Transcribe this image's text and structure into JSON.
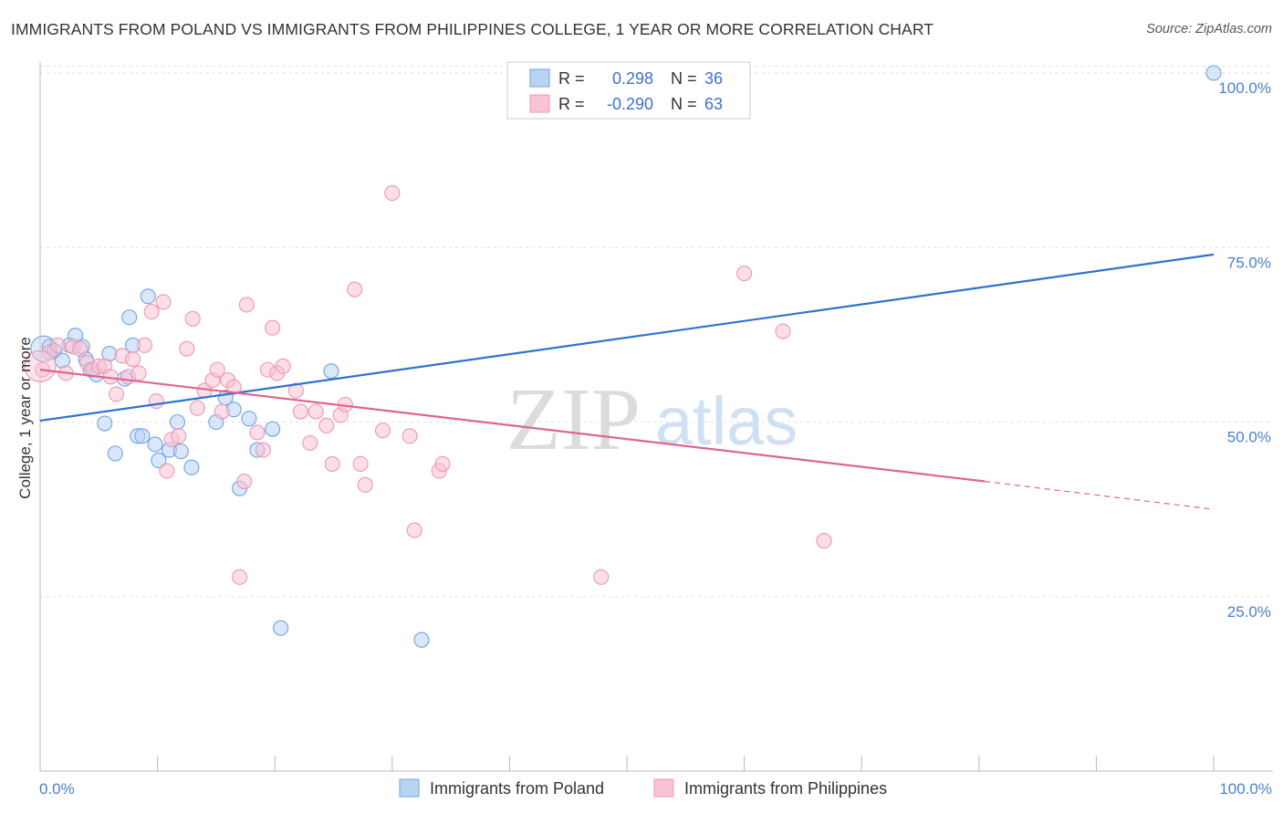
{
  "header": {
    "title": "IMMIGRANTS FROM POLAND VS IMMIGRANTS FROM PHILIPPINES COLLEGE, 1 YEAR OR MORE CORRELATION CHART",
    "source": "Source: ZipAtlas.com"
  },
  "watermark": {
    "zip": "ZIP",
    "atlas": "atlas"
  },
  "legend_top": {
    "rows": [
      {
        "r_label": "R =",
        "r_value": "0.298",
        "n_label": "N =",
        "n_value": "36"
      },
      {
        "r_label": "R =",
        "r_value": "-0.290",
        "n_label": "N =",
        "n_value": "63"
      }
    ]
  },
  "chart_data": {
    "type": "scatter",
    "title": "IMMIGRANTS FROM POLAND VS IMMIGRANTS FROM PHILIPPINES COLLEGE, 1 YEAR OR MORE CORRELATION CHART",
    "xlabel": "",
    "ylabel": "College, 1 year or more",
    "xlim": [
      0,
      100
    ],
    "ylim": [
      0,
      104
    ],
    "x_tick_labels": [
      "0.0%",
      "100.0%"
    ],
    "y_tick_labels": [
      {
        "value": 100,
        "label": "100.0%"
      },
      {
        "value": 75,
        "label": "75.0%"
      },
      {
        "value": 50,
        "label": "50.0%"
      },
      {
        "value": 25,
        "label": "25.0%"
      }
    ],
    "grid": true,
    "legend_position": "bottom",
    "series": [
      {
        "name": "Immigrants from Poland",
        "color": "#6fa3e6",
        "fill": "#b9d3f3",
        "line_color": "#2e73d1",
        "trend": {
          "x0": 0,
          "y0": 50.2,
          "x1": 100,
          "y1": 74.0
        },
        "points": [
          [
            0.3,
            60.5
          ],
          [
            0.8,
            60.8
          ],
          [
            1.2,
            60.2
          ],
          [
            1.9,
            58.8
          ],
          [
            2.5,
            61.0
          ],
          [
            3.0,
            62.4
          ],
          [
            3.6,
            60.8
          ],
          [
            3.9,
            59.0
          ],
          [
            4.3,
            57.5
          ],
          [
            4.8,
            56.8
          ],
          [
            5.5,
            49.8
          ],
          [
            5.9,
            59.8
          ],
          [
            6.4,
            45.5
          ],
          [
            7.2,
            56.2
          ],
          [
            7.6,
            65.0
          ],
          [
            7.9,
            61.0
          ],
          [
            8.3,
            48.0
          ],
          [
            8.7,
            48.0
          ],
          [
            9.2,
            68.0
          ],
          [
            9.8,
            46.8
          ],
          [
            10.1,
            44.5
          ],
          [
            11.0,
            46.0
          ],
          [
            11.7,
            50.0
          ],
          [
            12.0,
            45.8
          ],
          [
            12.9,
            43.5
          ],
          [
            15.0,
            50.0
          ],
          [
            15.8,
            53.5
          ],
          [
            16.5,
            51.8
          ],
          [
            17.0,
            40.5
          ],
          [
            17.8,
            50.5
          ],
          [
            18.5,
            46.0
          ],
          [
            19.8,
            49.0
          ],
          [
            20.5,
            20.5
          ],
          [
            24.8,
            57.3
          ],
          [
            32.5,
            18.8
          ],
          [
            100.0,
            100.0
          ]
        ]
      },
      {
        "name": "Immigrants from Philippines",
        "color": "#ef97b4",
        "fill": "#f8c3d4",
        "line_color": "#e0648f",
        "trend": {
          "x0": 0,
          "y0": 57.5,
          "x1": 80.5,
          "y1": 41.5
        },
        "trend_dashed": {
          "x0": 80.5,
          "y0": 41.5,
          "x1": 100,
          "y1": 37.5
        },
        "points": [
          [
            0.2,
            57.5
          ],
          [
            0.8,
            60.0
          ],
          [
            1.5,
            61.0
          ],
          [
            2.2,
            57.0
          ],
          [
            2.8,
            60.8
          ],
          [
            3.4,
            60.5
          ],
          [
            4.0,
            58.5
          ],
          [
            4.5,
            57.5
          ],
          [
            5.0,
            58.0
          ],
          [
            5.5,
            58.0
          ],
          [
            6.0,
            56.5
          ],
          [
            6.5,
            54.0
          ],
          [
            7.0,
            59.5
          ],
          [
            7.5,
            56.5
          ],
          [
            7.9,
            59.0
          ],
          [
            8.4,
            57.0
          ],
          [
            8.9,
            61.0
          ],
          [
            9.5,
            65.8
          ],
          [
            9.9,
            53.0
          ],
          [
            10.5,
            67.2
          ],
          [
            10.8,
            43.0
          ],
          [
            11.2,
            47.5
          ],
          [
            11.8,
            48.0
          ],
          [
            12.5,
            60.5
          ],
          [
            13.0,
            64.8
          ],
          [
            13.4,
            52.0
          ],
          [
            14.0,
            54.5
          ],
          [
            14.7,
            56.0
          ],
          [
            15.1,
            57.5
          ],
          [
            15.5,
            51.5
          ],
          [
            16.0,
            56.0
          ],
          [
            16.5,
            55.0
          ],
          [
            17.0,
            27.8
          ],
          [
            17.4,
            41.5
          ],
          [
            17.6,
            66.8
          ],
          [
            18.5,
            48.5
          ],
          [
            19.0,
            46.0
          ],
          [
            19.4,
            57.5
          ],
          [
            19.8,
            63.5
          ],
          [
            20.2,
            57.0
          ],
          [
            20.7,
            58.0
          ],
          [
            21.8,
            54.5
          ],
          [
            22.2,
            51.5
          ],
          [
            23.0,
            47.0
          ],
          [
            23.5,
            51.5
          ],
          [
            24.4,
            49.5
          ],
          [
            24.9,
            44.0
          ],
          [
            25.6,
            51.0
          ],
          [
            26.0,
            52.5
          ],
          [
            26.8,
            69.0
          ],
          [
            27.3,
            44.0
          ],
          [
            27.7,
            41.0
          ],
          [
            29.2,
            48.8
          ],
          [
            30.0,
            82.8
          ],
          [
            31.5,
            48.0
          ],
          [
            31.9,
            34.5
          ],
          [
            34.0,
            43.0
          ],
          [
            34.3,
            44.0
          ],
          [
            47.8,
            27.8
          ],
          [
            60.0,
            71.3
          ],
          [
            63.3,
            63.0
          ],
          [
            66.8,
            33.0
          ],
          [
            0.0,
            58.0
          ]
        ]
      }
    ]
  }
}
